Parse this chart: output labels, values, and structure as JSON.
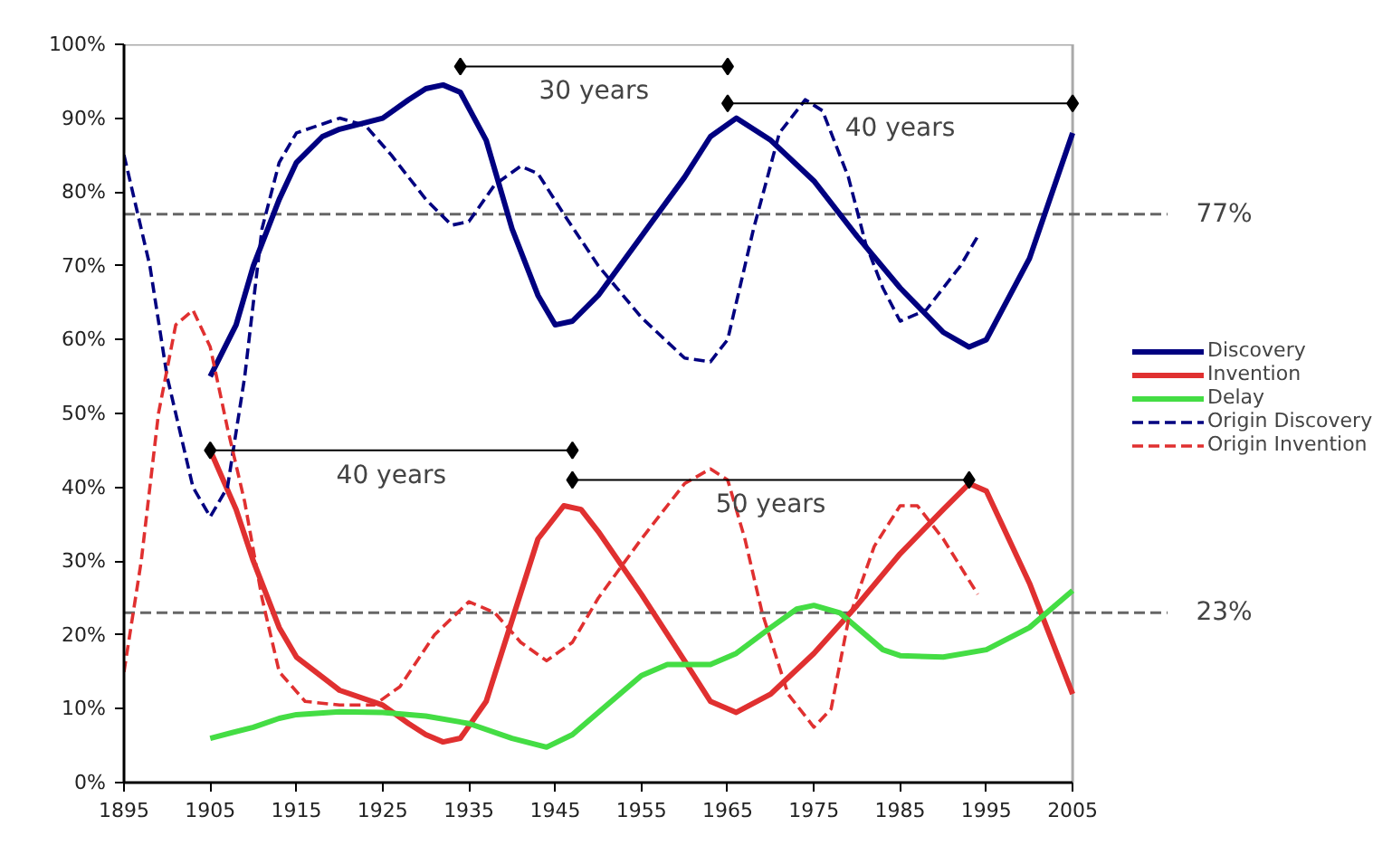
{
  "chart_data": {
    "type": "line",
    "xlim": [
      1895,
      2005
    ],
    "ylim": [
      0,
      100
    ],
    "xticks": [
      1895,
      1905,
      1915,
      1925,
      1935,
      1945,
      1955,
      1965,
      1975,
      1985,
      1995,
      2005
    ],
    "yticks": [
      {
        "value": 0,
        "label": "0%"
      },
      {
        "value": 10,
        "label": "10%"
      },
      {
        "value": 20,
        "label": "20%"
      },
      {
        "value": 30,
        "label": "30%"
      },
      {
        "value": 40,
        "label": "40%"
      },
      {
        "value": 50,
        "label": "50%"
      },
      {
        "value": 60,
        "label": "60%"
      },
      {
        "value": 70,
        "label": "70%"
      },
      {
        "value": 80,
        "label": "80%"
      },
      {
        "value": 90,
        "label": "90%"
      },
      {
        "value": 100,
        "label": "100%"
      }
    ],
    "grid": false,
    "legend": "right",
    "marker": "none",
    "series": [
      {
        "name": "Discovery",
        "color": "#000080",
        "line_style": "solid",
        "x": [
          1905,
          1908,
          1910,
          1913,
          1915,
          1918,
          1920,
          1925,
          1928,
          1930,
          1932,
          1934,
          1937,
          1940,
          1943,
          1945,
          1947,
          1950,
          1955,
          1960,
          1963,
          1966,
          1970,
          1975,
          1980,
          1985,
          1990,
          1993,
          1995,
          2000,
          2005
        ],
        "values": [
          55,
          62,
          70,
          79,
          84,
          87.5,
          88.5,
          90,
          92.5,
          94,
          94.5,
          93.5,
          87,
          75,
          66,
          62,
          62.5,
          66,
          74,
          82,
          87.5,
          90,
          87,
          81.5,
          74,
          67,
          61,
          59,
          60,
          71,
          88
        ]
      },
      {
        "name": "Invention",
        "color": "#e03030",
        "line_style": "solid",
        "x": [
          1905,
          1908,
          1910,
          1913,
          1915,
          1920,
          1925,
          1928,
          1930,
          1932,
          1934,
          1937,
          1940,
          1943,
          1946,
          1948,
          1950,
          1955,
          1960,
          1963,
          1966,
          1970,
          1975,
          1980,
          1985,
          1990,
          1993,
          1995,
          2000,
          2005
        ],
        "values": [
          45,
          37,
          30,
          21,
          17,
          12.5,
          10.5,
          8,
          6.5,
          5.5,
          6,
          11,
          22,
          33,
          37.5,
          37,
          34,
          25.5,
          16.5,
          11,
          9.5,
          12,
          17.5,
          24,
          31,
          37,
          40.5,
          39.5,
          27,
          12
        ]
      },
      {
        "name": "Delay",
        "color": "#44dd44",
        "line_style": "solid",
        "x": [
          1905,
          1910,
          1913,
          1915,
          1920,
          1925,
          1930,
          1935,
          1940,
          1944,
          1947,
          1950,
          1955,
          1958,
          1963,
          1966,
          1970,
          1973,
          1975,
          1978,
          1980,
          1983,
          1985,
          1990,
          1995,
          2000,
          2005
        ],
        "values": [
          6,
          7.5,
          8.7,
          9.2,
          9.6,
          9.5,
          9,
          8,
          6,
          4.8,
          6.5,
          9.5,
          14.5,
          16,
          16,
          17.5,
          21,
          23.5,
          24,
          23,
          21,
          18,
          17.2,
          17,
          18,
          21,
          26
        ]
      },
      {
        "name": "Origin Discovery",
        "color": "#000080",
        "line_style": "dashed",
        "x": [
          1895,
          1898,
          1900,
          1903,
          1905,
          1907,
          1909,
          1911,
          1913,
          1915,
          1920,
          1923,
          1926,
          1930,
          1933,
          1935,
          1938,
          1941,
          1943,
          1946,
          1950,
          1955,
          1960,
          1963,
          1965,
          1968,
          1971,
          1974,
          1976,
          1979,
          1981,
          1983,
          1985,
          1988,
          1992,
          1994
        ],
        "values": [
          85,
          70,
          55,
          40,
          36,
          40,
          55,
          75,
          84,
          88,
          90,
          89,
          85,
          79,
          75.5,
          76,
          81,
          83.5,
          82.5,
          77,
          70,
          63,
          57.5,
          57,
          60,
          75,
          88,
          92.5,
          91,
          82,
          73,
          67,
          62.5,
          64,
          70,
          74
        ]
      },
      {
        "name": "Origin Invention",
        "color": "#e03030",
        "line_style": "dashed",
        "x": [
          1895,
          1897,
          1899,
          1901,
          1903,
          1905,
          1907,
          1909,
          1911,
          1913,
          1916,
          1920,
          1924,
          1927,
          1931,
          1935,
          1938,
          1941,
          1944,
          1947,
          1950,
          1955,
          1960,
          1963,
          1965,
          1967,
          1969,
          1972,
          1975,
          1977,
          1979,
          1982,
          1985,
          1987,
          1990,
          1994
        ],
        "values": [
          15,
          30,
          50,
          62,
          64,
          59,
          48,
          38,
          25,
          15,
          11,
          10.5,
          10.5,
          13,
          20,
          24.5,
          23,
          19,
          16.5,
          19,
          25,
          33,
          40.5,
          42.5,
          41,
          33,
          23,
          12,
          7.5,
          10,
          22,
          32,
          37.5,
          37.5,
          33,
          25.5
        ]
      },
      {
        "color": "#000000",
        "line_style": "solid",
        "marker": "diamond",
        "x": [
          1934,
          1965
        ],
        "values": [
          97,
          97
        ]
      },
      {
        "color": "#000000",
        "line_style": "solid",
        "marker": "diamond",
        "x": [
          1965,
          2005
        ],
        "values": [
          92,
          92
        ]
      },
      {
        "color": "#000000",
        "line_style": "solid",
        "marker": "diamond",
        "x": [
          1905,
          1947
        ],
        "values": [
          45,
          45
        ]
      },
      {
        "color": "#000000",
        "line_style": "solid",
        "marker": "diamond",
        "x": [
          1947,
          1993
        ],
        "values": [
          41,
          41
        ]
      }
    ],
    "ref_lines": [
      {
        "axis": "y",
        "value": 77,
        "label": "77%",
        "color": "#666666",
        "line_style": "dashed"
      },
      {
        "axis": "y",
        "value": 23,
        "label": "23%",
        "color": "#666666",
        "line_style": "dashed"
      }
    ],
    "annotations": [
      {
        "text": "30 years",
        "x": 1949.5,
        "y": 97
      },
      {
        "text": "40 years",
        "x": 1985,
        "y": 92
      },
      {
        "text": "40 years",
        "x": 1926,
        "y": 45
      },
      {
        "text": "50 years",
        "x": 1970,
        "y": 41
      }
    ]
  }
}
